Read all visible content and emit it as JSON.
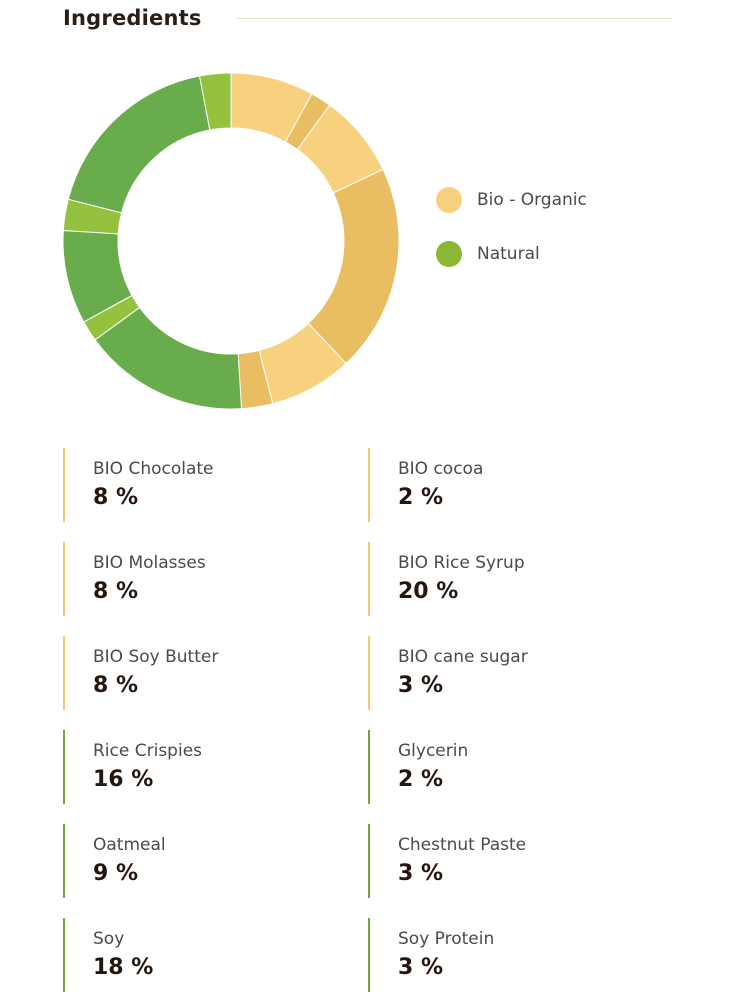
{
  "header": {
    "title": "Ingredients"
  },
  "colors": {
    "organic_light": "#f8d17e",
    "organic_dark": "#e9be62",
    "natural_dark": "#69ac4c",
    "natural_light": "#95c23e",
    "organic_border": "#f4c974",
    "natural_border": "#6fa83a"
  },
  "legend": [
    {
      "label": "Bio - Organic",
      "color": "#f8d17e"
    },
    {
      "label": "Natural",
      "color": "#8ab833"
    }
  ],
  "chart_data": {
    "type": "pie",
    "title": "",
    "series": [
      {
        "name": "Bio - Organic",
        "values": [
          {
            "label": "BIO Chocolate",
            "value": 8,
            "color": "#f8d17e"
          },
          {
            "label": "BIO cocoa",
            "value": 2,
            "color": "#e9be62"
          },
          {
            "label": "BIO Molasses",
            "value": 8,
            "color": "#f8d17e"
          },
          {
            "label": "BIO Rice Syrup",
            "value": 20,
            "color": "#e9be62"
          },
          {
            "label": "BIO Soy Butter",
            "value": 8,
            "color": "#f8d17e"
          },
          {
            "label": "BIO cane sugar",
            "value": 3,
            "color": "#e9be62"
          }
        ]
      },
      {
        "name": "Natural",
        "values": [
          {
            "label": "Rice Crispies",
            "value": 16,
            "color": "#69ac4c"
          },
          {
            "label": "Glycerin",
            "value": 2,
            "color": "#95c23e"
          },
          {
            "label": "Oatmeal",
            "value": 9,
            "color": "#69ac4c"
          },
          {
            "label": "Chestnut Paste",
            "value": 3,
            "color": "#95c23e"
          },
          {
            "label": "Soy",
            "value": 18,
            "color": "#69ac4c"
          },
          {
            "label": "Soy Protein",
            "value": 3,
            "color": "#95c23e"
          }
        ]
      }
    ],
    "slices": [
      {
        "label": "BIO Chocolate",
        "value": 8,
        "color": "#f8d17e"
      },
      {
        "label": "BIO cocoa",
        "value": 2,
        "color": "#e9be62"
      },
      {
        "label": "BIO Molasses",
        "value": 8,
        "color": "#f8d17e"
      },
      {
        "label": "BIO Rice Syrup",
        "value": 20,
        "color": "#e9be62"
      },
      {
        "label": "BIO Soy Butter",
        "value": 8,
        "color": "#f8d17e"
      },
      {
        "label": "BIO cane sugar",
        "value": 3,
        "color": "#e9be62"
      },
      {
        "label": "Rice Crispies",
        "value": 16,
        "color": "#69ac4c"
      },
      {
        "label": "Glycerin",
        "value": 2,
        "color": "#95c23e"
      },
      {
        "label": "Oatmeal",
        "value": 9,
        "color": "#69ac4c"
      },
      {
        "label": "Chestnut Paste",
        "value": 3,
        "color": "#95c23e"
      },
      {
        "label": "Soy",
        "value": 18,
        "color": "#69ac4c"
      },
      {
        "label": "Soy Protein",
        "value": 3,
        "color": "#95c23e"
      }
    ],
    "legend_position": "right",
    "donut": true
  },
  "ingredients": [
    {
      "name": "BIO Chocolate",
      "value": "8 %",
      "group": "organic"
    },
    {
      "name": "BIO cocoa",
      "value": "2 %",
      "group": "organic"
    },
    {
      "name": "BIO Molasses",
      "value": "8 %",
      "group": "organic"
    },
    {
      "name": "BIO Rice Syrup",
      "value": "20 %",
      "group": "organic"
    },
    {
      "name": "BIO Soy Butter",
      "value": "8 %",
      "group": "organic"
    },
    {
      "name": "BIO cane sugar",
      "value": "3 %",
      "group": "organic"
    },
    {
      "name": "Rice Crispies",
      "value": "16 %",
      "group": "natural"
    },
    {
      "name": "Glycerin",
      "value": "2 %",
      "group": "natural"
    },
    {
      "name": "Oatmeal",
      "value": "9 %",
      "group": "natural"
    },
    {
      "name": "Chestnut Paste",
      "value": "3 %",
      "group": "natural"
    },
    {
      "name": "Soy",
      "value": "18 %",
      "group": "natural"
    },
    {
      "name": "Soy Protein",
      "value": "3 %",
      "group": "natural"
    }
  ]
}
